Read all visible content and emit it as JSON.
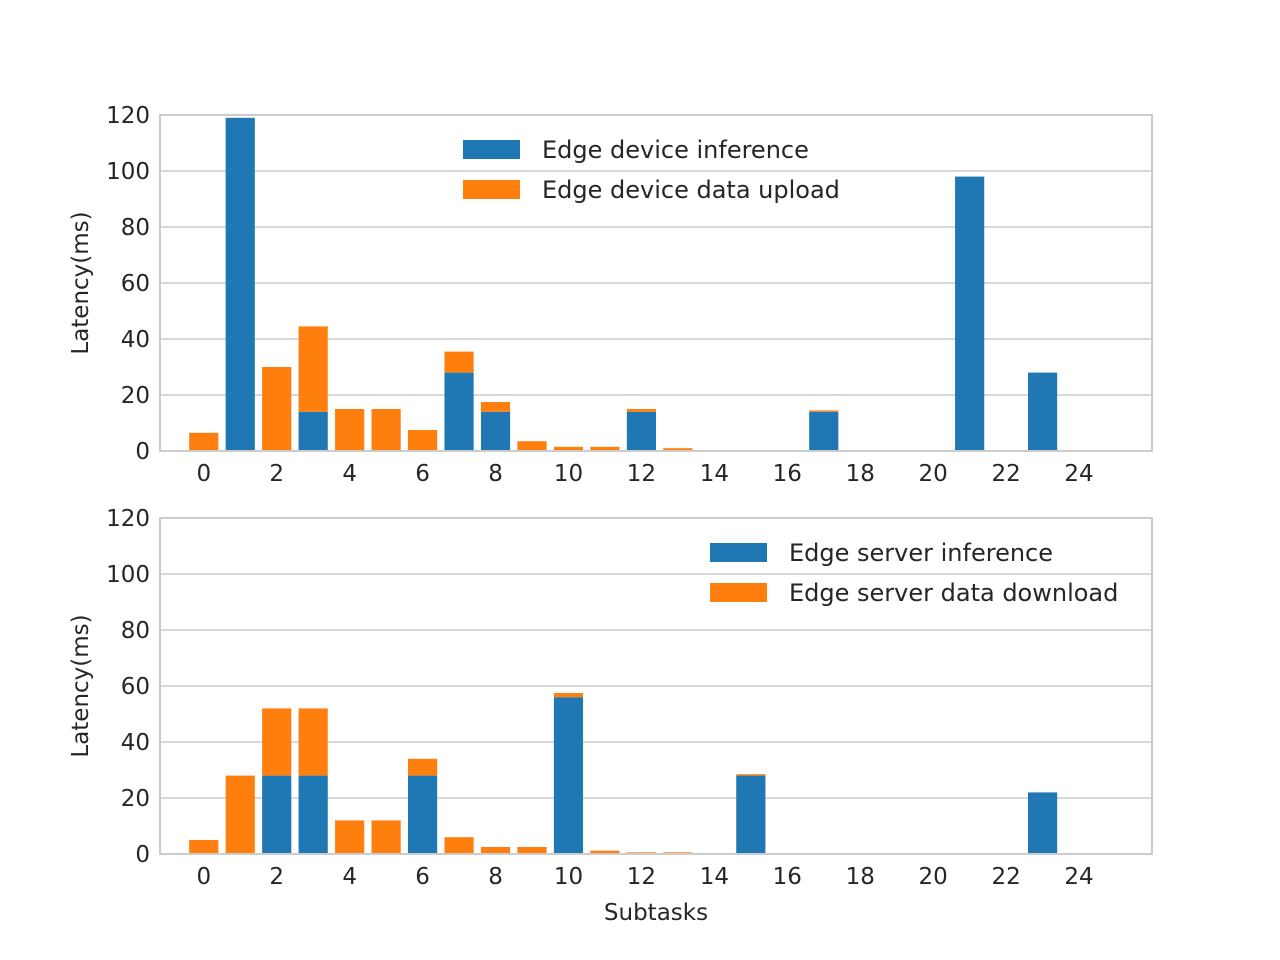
{
  "chart_data": [
    {
      "type": "bar",
      "stacked": true,
      "title": "",
      "xlabel": "",
      "ylabel": "Latency(ms)",
      "ylim": [
        0,
        120
      ],
      "xlim": [
        -1.2,
        26
      ],
      "xticks": [
        0,
        2,
        4,
        6,
        8,
        10,
        12,
        14,
        16,
        18,
        20,
        22,
        24
      ],
      "yticks": [
        0,
        20,
        40,
        60,
        80,
        100,
        120
      ],
      "grid": "y",
      "legend_position": "top-center",
      "x": [
        0,
        1,
        2,
        3,
        4,
        5,
        6,
        7,
        8,
        9,
        10,
        11,
        12,
        13,
        14,
        15,
        16,
        17,
        18,
        19,
        20,
        21,
        22,
        23,
        24
      ],
      "series": [
        {
          "name": "Edge device inference",
          "color": "#1f77b4",
          "values": [
            0,
            119,
            0,
            14,
            0,
            0,
            0,
            28,
            14,
            0,
            0,
            0,
            14,
            0,
            0,
            0,
            0,
            14,
            0,
            0,
            0,
            98,
            0,
            28,
            0
          ]
        },
        {
          "name": "Edge device data upload",
          "color": "#ff7f0e",
          "values": [
            6.5,
            0,
            30,
            30.5,
            15,
            15,
            7.5,
            7.5,
            3.5,
            3.5,
            1.5,
            1.5,
            1,
            1,
            0,
            0,
            0,
            0.5,
            0,
            0,
            0,
            0,
            0,
            0,
            0
          ]
        }
      ]
    },
    {
      "type": "bar",
      "stacked": true,
      "title": "",
      "xlabel": "Subtasks",
      "ylabel": "Latency(ms)",
      "ylim": [
        0,
        120
      ],
      "xlim": [
        -1.2,
        26
      ],
      "xticks": [
        0,
        2,
        4,
        6,
        8,
        10,
        12,
        14,
        16,
        18,
        20,
        22,
        24
      ],
      "yticks": [
        0,
        20,
        40,
        60,
        80,
        100,
        120
      ],
      "grid": "y",
      "legend_position": "top-right",
      "x": [
        0,
        1,
        2,
        3,
        4,
        5,
        6,
        7,
        8,
        9,
        10,
        11,
        12,
        13,
        14,
        15,
        16,
        17,
        18,
        19,
        20,
        21,
        22,
        23,
        24
      ],
      "series": [
        {
          "name": "Edge server inference",
          "color": "#1f77b4",
          "values": [
            0,
            0,
            28,
            28,
            0,
            0,
            28,
            0,
            0,
            0,
            56,
            0,
            0,
            0,
            0,
            28,
            0,
            0,
            0,
            0,
            0,
            0,
            0,
            22,
            0
          ]
        },
        {
          "name": "Edge server data download",
          "color": "#ff7f0e",
          "values": [
            5,
            28,
            24,
            24,
            12,
            12,
            6,
            6,
            2.5,
            2.5,
            1.5,
            1.2,
            0.6,
            0.6,
            0,
            0.5,
            0,
            0,
            0,
            0,
            0,
            0,
            0,
            0,
            0
          ]
        }
      ]
    }
  ]
}
